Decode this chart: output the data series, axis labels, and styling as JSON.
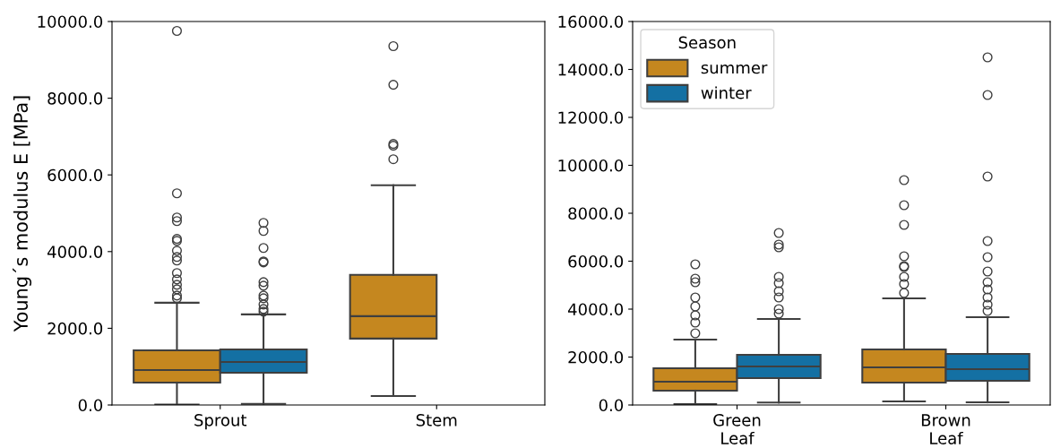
{
  "chart_data": [
    {
      "type": "box",
      "ylabel": "Young´s modulus E [MPa]",
      "categories": [
        "Sprout",
        "Stem"
      ],
      "ylim": [
        0,
        10000
      ],
      "yticks": [
        {
          "value": 0,
          "label": "0.0"
        },
        {
          "value": 2000,
          "label": "2000.0"
        },
        {
          "value": 4000,
          "label": "4000.0"
        },
        {
          "value": 6000,
          "label": "6000.0"
        },
        {
          "value": 8000,
          "label": "8000.0"
        },
        {
          "value": 10000,
          "label": "10000.0"
        }
      ],
      "grid": false,
      "legend": false,
      "series": [
        {
          "color": "#c5871f",
          "boxes": [
            {
              "low": 10,
              "q1": 585,
              "median": 912,
              "q3": 1427,
              "high": 2667,
              "outliers": [
                9755,
                5520,
                4890,
                4795,
                4330,
                4280,
                4023,
                3860,
                3766,
                3440,
                3275,
                3135,
                3018,
                2854,
                2784
              ]
            },
            {
              "low": 234,
              "q1": 1731,
              "median": 2316,
              "q3": 3392,
              "high": 5731,
              "outliers": [
                9357,
                8351,
                6807,
                6760,
                6409
              ]
            }
          ]
        },
        {
          "color": "#1470a3",
          "boxes": [
            {
              "low": 30,
              "q1": 842,
              "median": 1123,
              "q3": 1450,
              "high": 2363,
              "outliers": [
                4750,
                4538,
                4094,
                3743,
                3719,
                3205,
                3111,
                2854,
                2784,
                2620,
                2503,
                2433
              ]
            },
            null
          ]
        }
      ]
    },
    {
      "type": "box",
      "categories": [
        "Green\nLeaf",
        "Brown\nLeaf"
      ],
      "ylim": [
        0,
        16000
      ],
      "yticks": [
        {
          "value": 0,
          "label": "0.0"
        },
        {
          "value": 2000,
          "label": "2000.0"
        },
        {
          "value": 4000,
          "label": "4000.0"
        },
        {
          "value": 6000,
          "label": "6000.0"
        },
        {
          "value": 8000,
          "label": "8000.0"
        },
        {
          "value": 10000,
          "label": "10000.0"
        },
        {
          "value": 12000,
          "label": "12000.0"
        },
        {
          "value": 14000,
          "label": "14000.0"
        },
        {
          "value": 16000,
          "label": "16000.0"
        }
      ],
      "grid": false,
      "legend": "top left",
      "legend_title": "Season",
      "series": [
        {
          "name": "summer",
          "color": "#c5871f",
          "boxes": [
            {
              "low": 40,
              "q1": 598,
              "median": 972,
              "q3": 1533,
              "high": 2729,
              "outliers": [
                5869,
                5271,
                5121,
                4486,
                4112,
                3738,
                3439,
                2991
              ]
            },
            {
              "low": 150,
              "q1": 935,
              "median": 1570,
              "q3": 2318,
              "high": 4449,
              "outliers": [
                9383,
                8336,
                7514,
                6206,
                5794,
                5757,
                5346,
                5047,
                4673
              ]
            }
          ]
        },
        {
          "name": "winter",
          "color": "#1470a3",
          "boxes": [
            {
              "low": 100,
              "q1": 1121,
              "median": 1607,
              "q3": 2093,
              "high": 3589,
              "outliers": [
                7178,
                6692,
                6580,
                5346,
                5084,
                4748,
                4486,
                4000,
                3813
              ]
            },
            {
              "low": 110,
              "q1": 1009,
              "median": 1495,
              "q3": 2131,
              "high": 3664,
              "outliers": [
                14505,
                12935,
                9533,
                6841,
                6168,
                5570,
                5121,
                4823,
                4486,
                4187,
                3925
              ]
            }
          ]
        }
      ]
    }
  ]
}
